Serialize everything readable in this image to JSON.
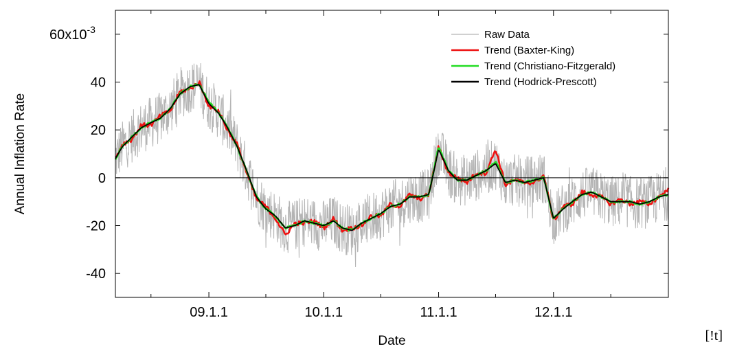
{
  "chart_data": {
    "type": "line",
    "xlabel": "Date",
    "ylabel": "Annual Inflation Rate",
    "xlim": [
      "2008-03-10",
      "2012-12-31"
    ],
    "ylim": [
      -0.05,
      0.07
    ],
    "y_multiplier_label": {
      "base": "60x10",
      "exponent": "-3"
    },
    "y_ticks": [
      -0.04,
      -0.02,
      0,
      0.02,
      0.04,
      0.06
    ],
    "y_tick_labels": [
      "-40",
      "-20",
      "0",
      "20",
      "40",
      ""
    ],
    "x_major_ticks": [
      "2009-01-01",
      "2010-01-01",
      "2011-01-01",
      "2012-01-01"
    ],
    "x_tick_labels": [
      "09.1.1",
      "10.1.1",
      "11.1.1",
      "12.1.1"
    ],
    "x_minor_ticks": [
      "2008-07-01",
      "2009-07-01",
      "2010-07-01",
      "2011-07-01",
      "2012-07-01"
    ],
    "zero_line": true,
    "grid": false,
    "legend_position": "top-right",
    "corner_note": "[!t]",
    "series": [
      {
        "name": "Raw Data",
        "color": "#b4b4b4",
        "x": [
          "2008-03-10",
          "2008-04-01",
          "2008-05-01",
          "2008-06-01",
          "2008-07-01",
          "2008-08-01",
          "2008-09-01",
          "2008-10-01",
          "2008-11-01",
          "2008-12-01",
          "2009-01-01",
          "2009-02-01",
          "2009-03-01",
          "2009-04-01",
          "2009-05-01",
          "2009-06-01",
          "2009-07-01",
          "2009-08-01",
          "2009-09-01",
          "2009-10-01",
          "2009-11-01",
          "2009-12-01",
          "2010-01-01",
          "2010-02-01",
          "2010-03-01",
          "2010-04-01",
          "2010-05-01",
          "2010-06-01",
          "2010-07-01",
          "2010-08-01",
          "2010-09-01",
          "2010-10-01",
          "2010-11-01",
          "2010-12-01",
          "2011-01-01",
          "2011-02-01",
          "2011-03-01",
          "2011-04-01",
          "2011-05-01",
          "2011-06-01",
          "2011-07-01",
          "2011-08-01",
          "2011-09-01",
          "2011-10-01",
          "2011-11-01",
          "2011-12-01",
          "2012-01-01",
          "2012-02-01",
          "2012-03-01",
          "2012-04-01",
          "2012-05-01",
          "2012-06-01",
          "2012-07-01",
          "2012-08-01",
          "2012-09-01",
          "2012-10-01",
          "2012-11-01",
          "2012-12-01",
          "2012-12-31"
        ],
        "values": [
          0.008,
          0.013,
          0.017,
          0.021,
          0.023,
          0.025,
          0.029,
          0.035,
          0.038,
          0.039,
          0.031,
          0.027,
          0.021,
          0.013,
          0.003,
          -0.008,
          -0.013,
          -0.016,
          -0.021,
          -0.02,
          -0.018,
          -0.019,
          -0.02,
          -0.018,
          -0.021,
          -0.022,
          -0.019,
          -0.017,
          -0.015,
          -0.012,
          -0.011,
          -0.008,
          -0.008,
          -0.007,
          0.012,
          0.003,
          -0.001,
          -0.001,
          0.001,
          0.003,
          0.006,
          -0.002,
          -0.001,
          -0.002,
          -0.001,
          0.0,
          -0.017,
          -0.013,
          -0.01,
          -0.007,
          -0.006,
          -0.008,
          -0.01,
          -0.01,
          -0.01,
          -0.011,
          -0.01,
          -0.008,
          -0.007
        ]
      },
      {
        "name": "Trend (Baxter-King)",
        "color": "#ee1111",
        "x": [
          "2008-03-10",
          "2008-04-01",
          "2008-05-01",
          "2008-06-01",
          "2008-07-01",
          "2008-08-01",
          "2008-09-01",
          "2008-10-01",
          "2008-11-01",
          "2008-12-01",
          "2009-01-01",
          "2009-02-01",
          "2009-03-01",
          "2009-04-01",
          "2009-05-01",
          "2009-06-01",
          "2009-07-01",
          "2009-08-01",
          "2009-09-01",
          "2009-10-01",
          "2009-11-01",
          "2009-12-01",
          "2010-01-01",
          "2010-02-01",
          "2010-03-01",
          "2010-04-01",
          "2010-05-01",
          "2010-06-01",
          "2010-07-01",
          "2010-08-01",
          "2010-09-01",
          "2010-10-01",
          "2010-11-01",
          "2010-12-01",
          "2011-01-01",
          "2011-02-01",
          "2011-03-01",
          "2011-04-01",
          "2011-05-01",
          "2011-06-01",
          "2011-07-01",
          "2011-08-01",
          "2011-09-01",
          "2011-10-01",
          "2011-11-01",
          "2011-12-01",
          "2012-01-01",
          "2012-02-01",
          "2012-03-01",
          "2012-04-01",
          "2012-05-01",
          "2012-06-01",
          "2012-07-01",
          "2012-08-01",
          "2012-09-01",
          "2012-10-01",
          "2012-11-01",
          "2012-12-01",
          "2012-12-31"
        ],
        "values": [
          0.008,
          0.014,
          0.016,
          0.022,
          0.022,
          0.026,
          0.028,
          0.036,
          0.037,
          0.04,
          0.03,
          0.028,
          0.02,
          0.014,
          0.002,
          -0.009,
          -0.012,
          -0.017,
          -0.024,
          -0.019,
          -0.019,
          -0.018,
          -0.021,
          -0.017,
          -0.022,
          -0.021,
          -0.02,
          -0.016,
          -0.016,
          -0.011,
          -0.012,
          -0.007,
          -0.009,
          -0.007,
          0.013,
          0.002,
          0.0,
          -0.002,
          0.002,
          0.002,
          0.012,
          -0.003,
          -0.001,
          -0.002,
          -0.002,
          0.001,
          -0.018,
          -0.012,
          -0.011,
          -0.006,
          -0.007,
          -0.008,
          -0.011,
          -0.009,
          -0.011,
          -0.01,
          -0.011,
          -0.008,
          -0.005
        ]
      },
      {
        "name": "Trend (Christiano-Fitzgerald)",
        "color": "#22dd22",
        "x": [
          "2008-03-10",
          "2008-04-01",
          "2008-05-01",
          "2008-06-01",
          "2008-07-01",
          "2008-08-01",
          "2008-09-01",
          "2008-10-01",
          "2008-11-01",
          "2008-12-01",
          "2009-01-01",
          "2009-02-01",
          "2009-03-01",
          "2009-04-01",
          "2009-05-01",
          "2009-06-01",
          "2009-07-01",
          "2009-08-01",
          "2009-09-01",
          "2009-10-01",
          "2009-11-01",
          "2009-12-01",
          "2010-01-01",
          "2010-02-01",
          "2010-03-01",
          "2010-04-01",
          "2010-05-01",
          "2010-06-01",
          "2010-07-01",
          "2010-08-01",
          "2010-09-01",
          "2010-10-01",
          "2010-11-01",
          "2010-12-01",
          "2011-01-01",
          "2011-02-01",
          "2011-03-01",
          "2011-04-01",
          "2011-05-01",
          "2011-06-01",
          "2011-07-01",
          "2011-08-01",
          "2011-09-01",
          "2011-10-01",
          "2011-11-01",
          "2011-12-01",
          "2012-01-01",
          "2012-02-01",
          "2012-03-01",
          "2012-04-01",
          "2012-05-01",
          "2012-06-01",
          "2012-07-01",
          "2012-08-01",
          "2012-09-01",
          "2012-10-01",
          "2012-11-01",
          "2012-12-01",
          "2012-12-31"
        ],
        "values": [
          0.008,
          0.013,
          0.017,
          0.021,
          0.023,
          0.025,
          0.029,
          0.035,
          0.038,
          0.039,
          0.032,
          0.027,
          0.021,
          0.013,
          0.003,
          -0.008,
          -0.013,
          -0.016,
          -0.021,
          -0.02,
          -0.018,
          -0.019,
          -0.02,
          -0.018,
          -0.021,
          -0.022,
          -0.019,
          -0.017,
          -0.015,
          -0.012,
          -0.011,
          -0.008,
          -0.008,
          -0.007,
          0.013,
          0.003,
          -0.001,
          -0.001,
          0.001,
          0.003,
          0.007,
          -0.002,
          -0.001,
          -0.002,
          -0.001,
          0.0,
          -0.017,
          -0.013,
          -0.01,
          -0.007,
          -0.006,
          -0.008,
          -0.01,
          -0.01,
          -0.01,
          -0.011,
          -0.01,
          -0.008,
          -0.007
        ]
      },
      {
        "name": "Trend (Hodrick-Prescott)",
        "color": "#000000",
        "x": [
          "2008-03-10",
          "2008-04-01",
          "2008-05-01",
          "2008-06-01",
          "2008-07-01",
          "2008-08-01",
          "2008-09-01",
          "2008-10-01",
          "2008-11-01",
          "2008-12-01",
          "2009-01-01",
          "2009-02-01",
          "2009-03-01",
          "2009-04-01",
          "2009-05-01",
          "2009-06-01",
          "2009-07-01",
          "2009-08-01",
          "2009-09-01",
          "2009-10-01",
          "2009-11-01",
          "2009-12-01",
          "2010-01-01",
          "2010-02-01",
          "2010-03-01",
          "2010-04-01",
          "2010-05-01",
          "2010-06-01",
          "2010-07-01",
          "2010-08-01",
          "2010-09-01",
          "2010-10-01",
          "2010-11-01",
          "2010-12-01",
          "2011-01-01",
          "2011-02-01",
          "2011-03-01",
          "2011-04-01",
          "2011-05-01",
          "2011-06-01",
          "2011-07-01",
          "2011-08-01",
          "2011-09-01",
          "2011-10-01",
          "2011-11-01",
          "2011-12-01",
          "2012-01-01",
          "2012-02-01",
          "2012-03-01",
          "2012-04-01",
          "2012-05-01",
          "2012-06-01",
          "2012-07-01",
          "2012-08-01",
          "2012-09-01",
          "2012-10-01",
          "2012-11-01",
          "2012-12-01",
          "2012-12-31"
        ],
        "values": [
          0.008,
          0.013,
          0.017,
          0.021,
          0.023,
          0.025,
          0.029,
          0.035,
          0.038,
          0.039,
          0.031,
          0.027,
          0.021,
          0.013,
          0.003,
          -0.008,
          -0.013,
          -0.016,
          -0.021,
          -0.02,
          -0.018,
          -0.019,
          -0.02,
          -0.018,
          -0.021,
          -0.022,
          -0.019,
          -0.017,
          -0.015,
          -0.012,
          -0.011,
          -0.008,
          -0.008,
          -0.007,
          0.012,
          0.003,
          -0.001,
          -0.001,
          0.001,
          0.003,
          0.006,
          -0.002,
          -0.001,
          -0.002,
          -0.001,
          0.0,
          -0.017,
          -0.013,
          -0.01,
          -0.007,
          -0.006,
          -0.008,
          -0.01,
          -0.01,
          -0.01,
          -0.011,
          -0.01,
          -0.008,
          -0.007
        ]
      }
    ]
  }
}
